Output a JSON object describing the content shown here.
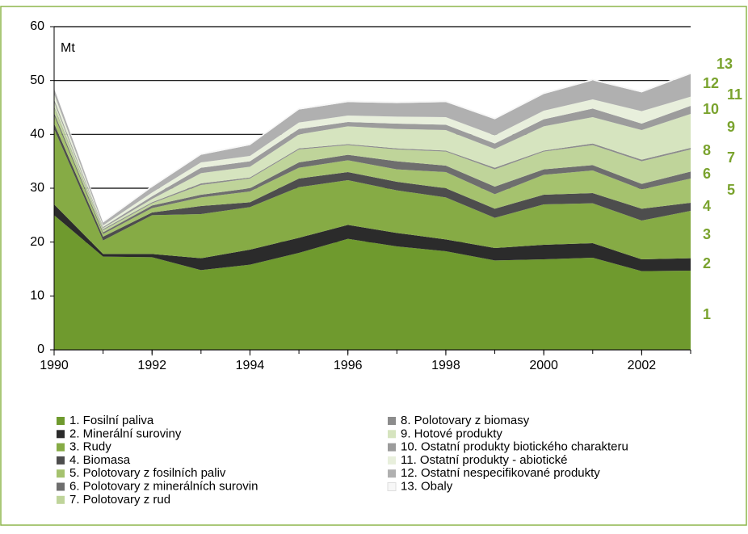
{
  "chart_data": {
    "type": "stacked_area",
    "ylabel": "Mt",
    "x": [
      1990,
      1991,
      1992,
      1993,
      1994,
      1995,
      1996,
      1997,
      1998,
      1999,
      2000,
      2001,
      2002,
      2003
    ],
    "xlim": [
      1990,
      2003
    ],
    "xticks": [
      1990,
      1992,
      1994,
      1996,
      1998,
      2000,
      2002
    ],
    "ylim": [
      0,
      60
    ],
    "yticks": [
      0,
      10,
      20,
      30,
      40,
      50,
      60
    ],
    "grid": true,
    "series": [
      {
        "name": "1. Fosilní paliva",
        "label": 1,
        "color": "#6f9a2e",
        "values": [
          25,
          17.3,
          17.2,
          14.8,
          15.8,
          18,
          20.6,
          19.2,
          18.3,
          16.6,
          16.8,
          17.1,
          14.6,
          14.7
        ]
      },
      {
        "name": "2. Minerální suroviny",
        "label": 2,
        "color": "#2b2b2b",
        "values": [
          2,
          0.5,
          0.6,
          2.2,
          2.8,
          2.8,
          2.6,
          2.5,
          2.2,
          2.3,
          2.7,
          2.7,
          2.2,
          2.3
        ]
      },
      {
        "name": "3. Rudy",
        "label": 3,
        "color": "#86ab45",
        "values": [
          14,
          2.5,
          7.2,
          8.2,
          7.9,
          9.4,
          8.3,
          7.9,
          7.8,
          5.6,
          7.5,
          7.4,
          7.2,
          8.8
        ]
      },
      {
        "name": "4. Biomasa",
        "label": 4,
        "color": "#4d4d4d",
        "values": [
          1,
          0.7,
          0.5,
          1.5,
          0.9,
          1.6,
          1.5,
          1.6,
          1.7,
          1.7,
          1.8,
          1.9,
          2.2,
          1.5
        ]
      },
      {
        "name": "5. Polotovary z fosilních paliv",
        "label": 5,
        "color": "#a5c26e",
        "values": [
          1.5,
          0.5,
          0.8,
          1.6,
          2,
          2,
          2.2,
          2.3,
          3,
          2.7,
          3.7,
          4.2,
          3.6,
          4.5
        ]
      },
      {
        "name": "6. Polotovary z minerálních surovin",
        "label": 6,
        "color": "#6e6e6e",
        "values": [
          0.5,
          0.3,
          0.5,
          0.5,
          0.6,
          1,
          1,
          1.5,
          1.2,
          1.4,
          1,
          1,
          1,
          1.3
        ]
      },
      {
        "name": "7. Polotovary z rud",
        "label": 7,
        "color": "#bfd49a",
        "values": [
          1,
          0.4,
          0.4,
          1.8,
          1.8,
          2.4,
          1.8,
          2.2,
          2.6,
          3.2,
          3.3,
          3.7,
          4.2,
          4.1
        ]
      },
      {
        "name": "8. Polotovary z biomasy",
        "label": 8,
        "color": "#8c8c8c",
        "values": [
          0.2,
          0.2,
          0.2,
          0.3,
          0.2,
          0.2,
          0.2,
          0.2,
          0.2,
          0.3,
          0.2,
          0.3,
          0.3,
          0.3
        ]
      },
      {
        "name": "9. Hotové produkty",
        "label": 9,
        "color": "#d6e4bf",
        "values": [
          0.8,
          0.2,
          0.6,
          1.9,
          2,
          2.6,
          3.3,
          3.6,
          3.8,
          3.5,
          4.5,
          4.9,
          5.5,
          6.3
        ]
      },
      {
        "name": "10. Ostatní produkty biotického charakteru",
        "label": 10,
        "color": "#9c9c9c",
        "values": [
          0.5,
          0.2,
          0.5,
          1,
          1,
          1,
          0.8,
          1,
          1,
          1,
          1.3,
          1.6,
          1.2,
          1.5
        ]
      },
      {
        "name": "11. Ostatní produkty - abiotické",
        "label": 11,
        "color": "#e8efdc",
        "values": [
          1,
          0.3,
          0.7,
          1,
          1,
          1.2,
          1.2,
          1.3,
          1.4,
          1.5,
          1.6,
          1.7,
          2.3,
          1.7
        ]
      },
      {
        "name": "12. Ostatní nespecifikované produkty",
        "label": 12,
        "color": "#b0b0b0",
        "values": [
          1,
          0.5,
          1,
          1.4,
          2,
          2.4,
          2.5,
          2.5,
          2.8,
          3,
          3.1,
          3.5,
          3.5,
          4.2
        ]
      },
      {
        "name": "13. Obaly",
        "label": 13,
        "color": "#f7f7f7",
        "values": [
          0.3,
          0.3,
          0.3,
          0.3,
          0.3,
          0.3,
          0.3,
          0.3,
          0.3,
          0.3,
          0.3,
          0.3,
          0.3,
          0.3
        ]
      }
    ]
  }
}
